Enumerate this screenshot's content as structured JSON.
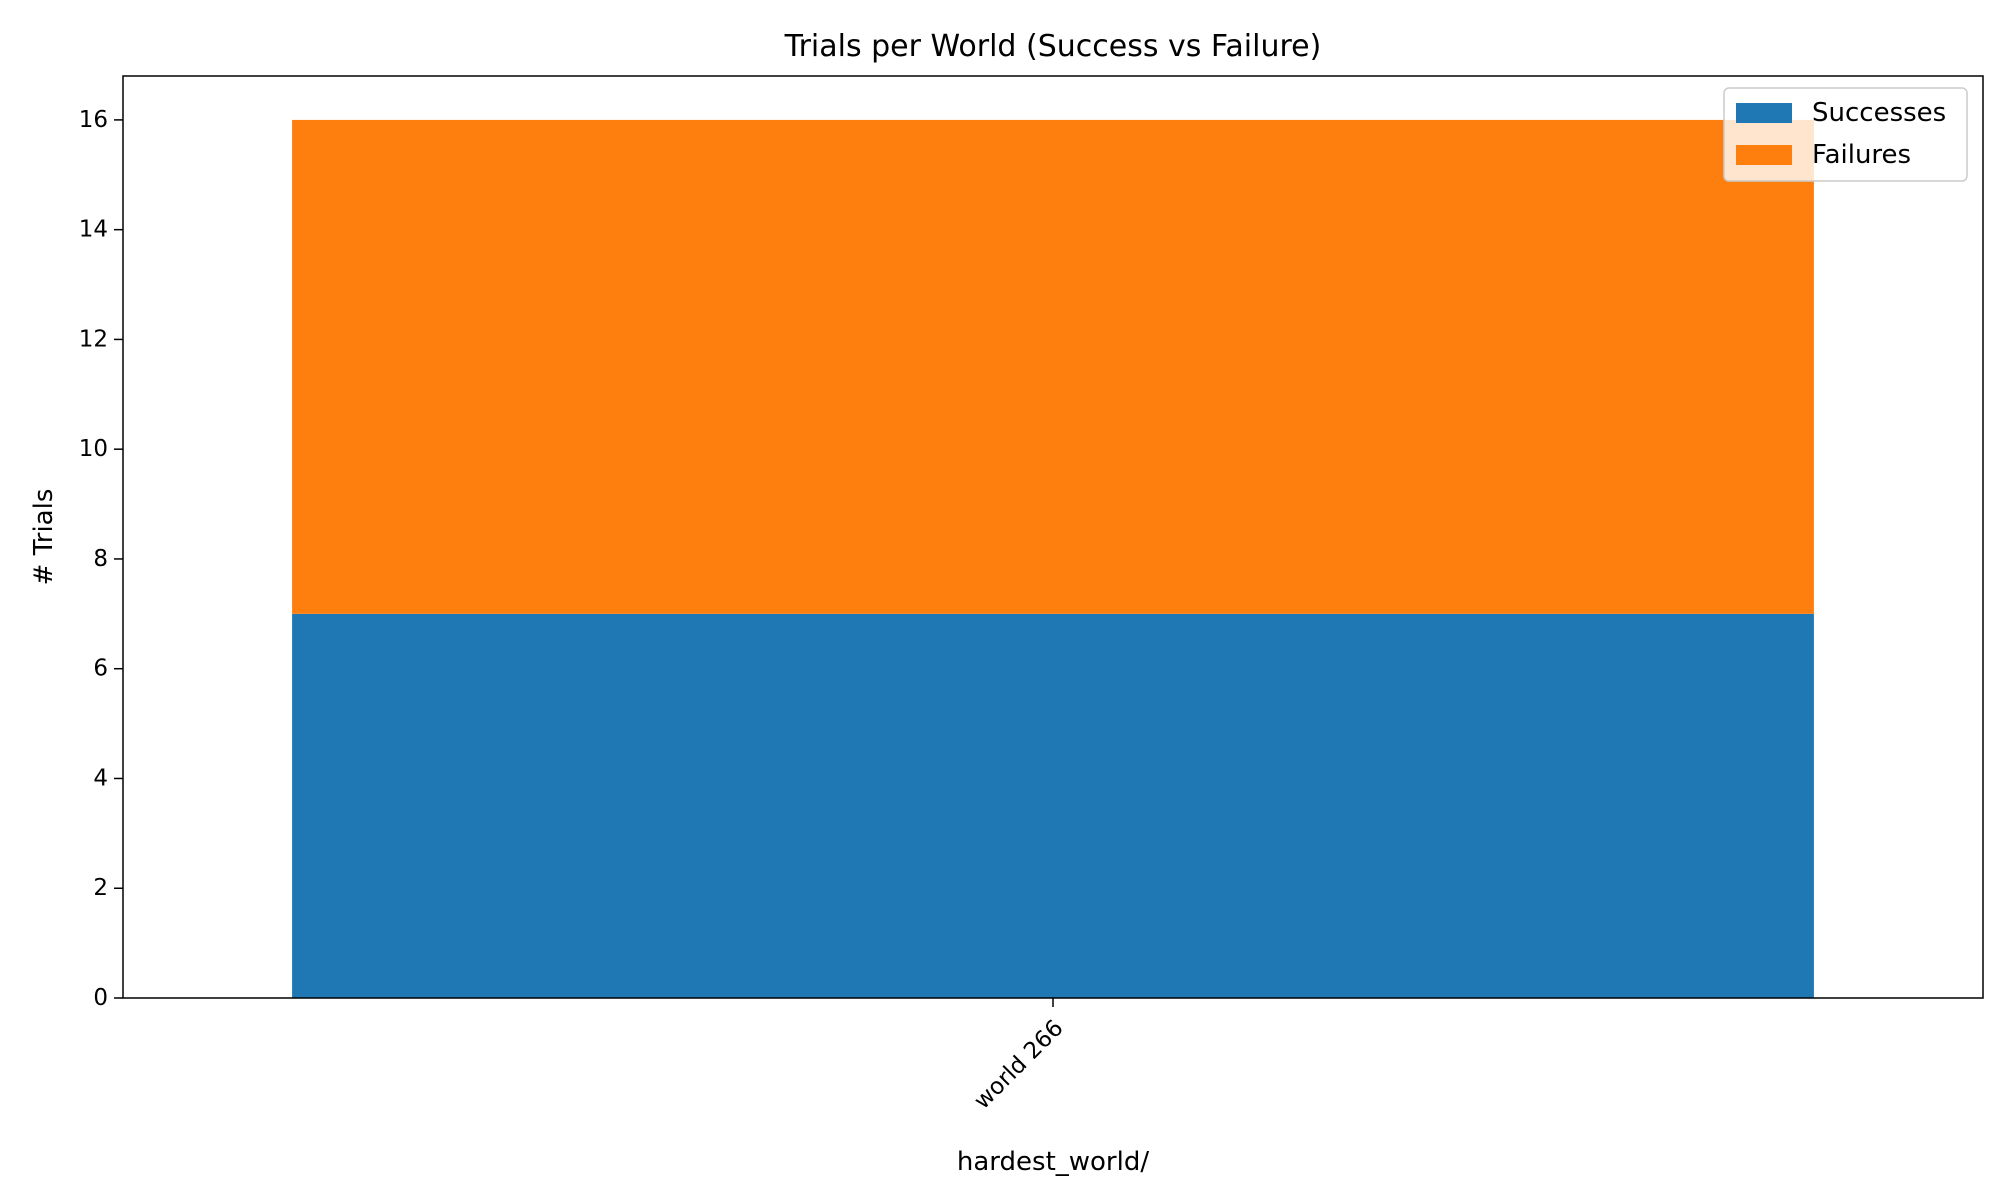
{
  "chart_data": {
    "type": "bar",
    "stacked": true,
    "title": "Trials per World (Success vs Failure)",
    "xlabel": "hardest_world/",
    "ylabel": "# Trials",
    "categories": [
      "world 266"
    ],
    "series": [
      {
        "name": "Successes",
        "values": [
          7
        ],
        "color": "#1f77b4"
      },
      {
        "name": "Failures",
        "values": [
          9
        ],
        "color": "#ff7f0e"
      }
    ],
    "ylim": [
      0,
      16.8
    ],
    "yticks": [
      0,
      2,
      4,
      6,
      8,
      10,
      12,
      14,
      16
    ],
    "grid": false,
    "legend_position": "top-right"
  }
}
